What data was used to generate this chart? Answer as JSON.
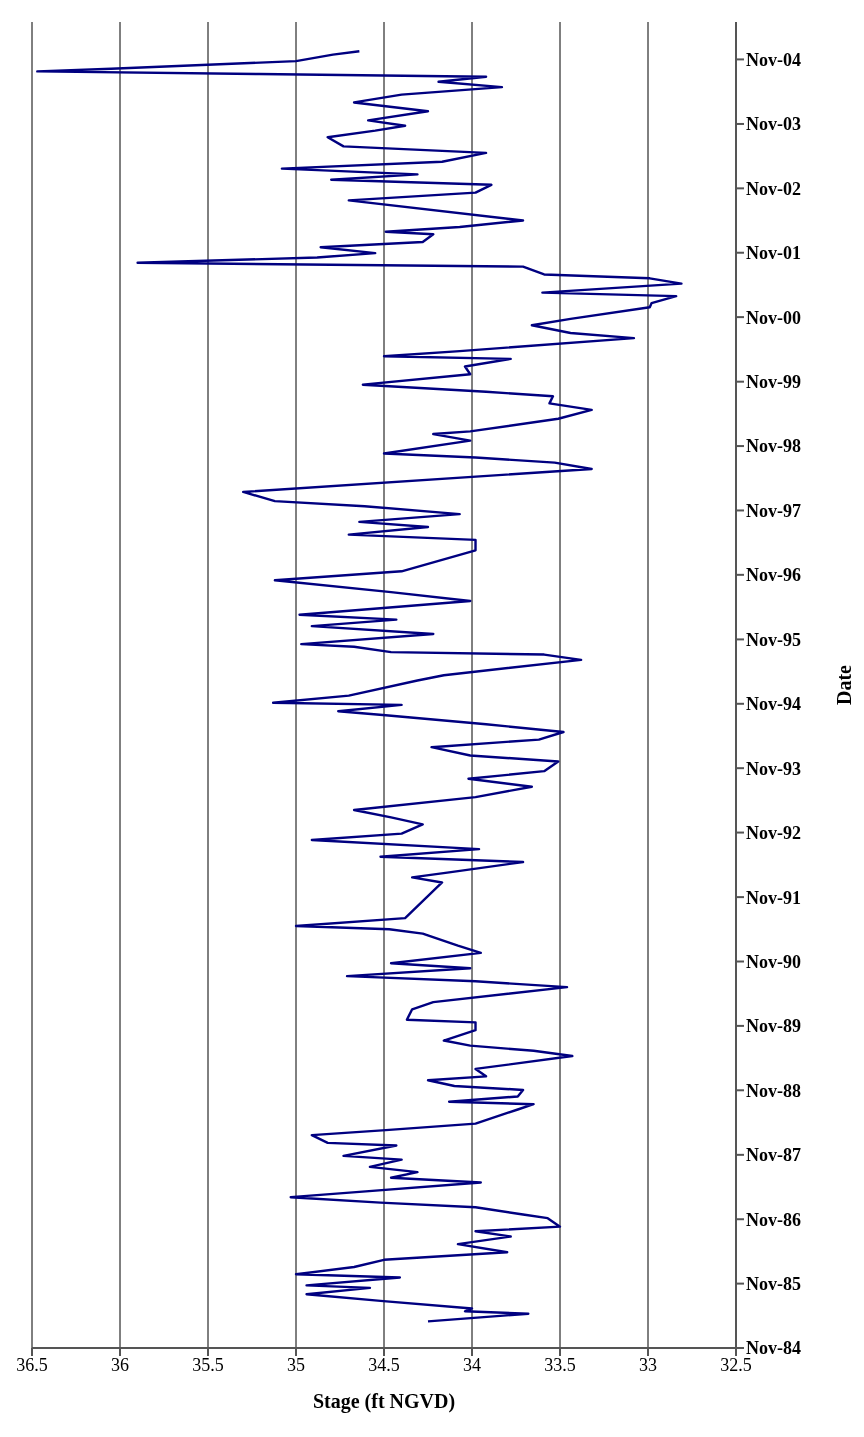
{
  "chart_data": {
    "type": "line",
    "orientation": "horizontal",
    "xlabel": "Stage (ft NGVD)",
    "ylabel": "Date",
    "ylim": [
      "1984-11",
      "2005-06"
    ],
    "yticks": [
      {
        "value": "1984-11",
        "label": "Nov-84"
      },
      {
        "value": "1985-11",
        "label": "Nov-85"
      },
      {
        "value": "1986-11",
        "label": "Nov-86"
      },
      {
        "value": "1987-11",
        "label": "Nov-87"
      },
      {
        "value": "1988-11",
        "label": "Nov-88"
      },
      {
        "value": "1989-11",
        "label": "Nov-89"
      },
      {
        "value": "1990-11",
        "label": "Nov-90"
      },
      {
        "value": "1991-11",
        "label": "Nov-91"
      },
      {
        "value": "1992-11",
        "label": "Nov-92"
      },
      {
        "value": "1993-11",
        "label": "Nov-93"
      },
      {
        "value": "1994-11",
        "label": "Nov-94"
      },
      {
        "value": "1995-11",
        "label": "Nov-95"
      },
      {
        "value": "1996-11",
        "label": "Nov-96"
      },
      {
        "value": "1997-11",
        "label": "Nov-97"
      },
      {
        "value": "1998-11",
        "label": "Nov-98"
      },
      {
        "value": "1999-11",
        "label": "Nov-99"
      },
      {
        "value": "2000-11",
        "label": "Nov-00"
      },
      {
        "value": "2001-11",
        "label": "Nov-01"
      },
      {
        "value": "2002-11",
        "label": "Nov-02"
      },
      {
        "value": "2003-11",
        "label": "Nov-03"
      },
      {
        "value": "2004-11",
        "label": "Nov-04"
      }
    ],
    "xlim": [
      36.5,
      32.5
    ],
    "xticks": [
      36.5,
      36,
      35.5,
      35,
      34.5,
      34,
      33.5,
      33,
      32.5
    ],
    "grid": "x",
    "legend": false,
    "marker": "none",
    "line_style": "solid",
    "series": [
      {
        "color": "#000080",
        "x": [
          "1985-04-01",
          "1985-05-14",
          "1985-05-28",
          "1985-06-13",
          "1985-07-26",
          "1985-09-02",
          "1985-10-08",
          "1985-10-22",
          "1985-12-06",
          "1985-12-24",
          "1986-02-03",
          "1986-03-16",
          "1986-04-28",
          "1986-06-13",
          "1986-07-26",
          "1986-08-25",
          "1986-09-20",
          "1986-11-07",
          "1986-11-28",
          "1987-01-08",
          "1987-02-03",
          "1987-03-06",
          "1987-04-05",
          "1987-05-28",
          "1987-06-24",
          "1987-07-26",
          "1987-08-25",
          "1987-10-05",
          "1987-10-26",
          "1987-12-24",
          "1988-01-08",
          "1988-02-21",
          "1988-03-20",
          "1988-04-26",
          "1988-07-15",
          "1988-08-14",
          "1988-08-28",
          "1988-09-27",
          "1988-11-03",
          "1988-11-25",
          "1988-12-28",
          "1989-01-19",
          "1989-03-02",
          "1989-05-14",
          "1989-06-13",
          "1989-07-12",
          "1989-08-10",
          "1989-10-08",
          "1989-11-21",
          "1989-12-06",
          "1990-02-03",
          "1990-03-16",
          "1990-06-09",
          "1990-07-12",
          "1990-08-10",
          "1990-09-24",
          "1990-10-22",
          "1990-12-20",
          "1991-01-30",
          "1991-04-08",
          "1991-05-03",
          "1991-05-21",
          "1991-07-05",
          "1991-10-01",
          "1992-01-23",
          "1992-02-21",
          "1992-03-20",
          "1992-05-18",
          "1992-06-17",
          "1992-07-30",
          "1992-09-20",
          "1992-10-26",
          "1992-12-17",
          "1993-01-26",
          "1993-03-09",
          "1993-05-21",
          "1993-07-19",
          "1993-09-02",
          "1993-10-15",
          "1993-12-09",
          "1994-01-12",
          "1994-02-28",
          "1994-04-12",
          "1994-05-25",
          "1994-07-08",
          "1994-08-28",
          "1994-09-20",
          "1994-10-26",
          "1994-11-07",
          "1994-12-17",
          "1995-03-13",
          "1995-04-12",
          "1995-07-08",
          "1995-08-07",
          "1995-08-21",
          "1995-09-20",
          "1995-10-05",
          "1995-12-02",
          "1996-01-15",
          "1996-02-21",
          "1996-03-20",
          "1996-06-06",
          "1996-07-26",
          "1996-10-01",
          "1996-11-21",
          "1997-01-19",
          "1997-03-20",
          "1997-05-18",
          "1997-06-17",
          "1997-07-30",
          "1997-08-28",
          "1997-10-11",
          "1997-11-25",
          "1997-12-24",
          "1998-02-14",
          "1998-06-24",
          "1998-07-30",
          "1998-08-28",
          "1998-09-20",
          "1998-12-02",
          "1999-01-08",
          "1999-01-23",
          "1999-04-05",
          "1999-05-25",
          "1999-07-01",
          "1999-08-10",
          "1999-09-05",
          "1999-10-15",
          "1999-12-13",
          "2000-01-26",
          "2000-03-09",
          "2000-03-24",
          "2000-04-22",
          "2000-07-05",
          "2000-08-03",
          "2000-09-16",
          "2000-10-22",
          "2000-12-27",
          "2001-01-19",
          "2001-02-28",
          "2001-03-20",
          "2001-05-10",
          "2001-06-09",
          "2001-07-01",
          "2001-08-14",
          "2001-09-05",
          "2001-10-05",
          "2001-10-30",
          "2001-12-02",
          "2002-01-01",
          "2002-02-14",
          "2002-02-28",
          "2002-03-27",
          "2002-05-03",
          "2002-07-01",
          "2002-08-25",
          "2002-10-08",
          "2002-11-21",
          "2002-12-20",
          "2003-01-19",
          "2003-02-21",
          "2003-04-01",
          "2003-05-21",
          "2003-06-27",
          "2003-08-18",
          "2003-09-24",
          "2003-10-22",
          "2003-11-21",
          "2004-01-12",
          "2004-03-02",
          "2004-04-15",
          "2004-05-28",
          "2004-06-27",
          "2004-07-26",
          "2004-08-10",
          "2004-08-25",
          "2004-09-09",
          "2004-10-22",
          "2004-11-28",
          "2004-12-17"
        ],
        "values": [
          34.25,
          33.68,
          34.04,
          34.0,
          34.52,
          34.94,
          34.58,
          34.94,
          34.41,
          35.0,
          34.67,
          34.5,
          33.8,
          34.08,
          33.78,
          33.98,
          33.5,
          33.57,
          33.71,
          33.98,
          34.52,
          35.03,
          34.64,
          33.95,
          34.46,
          34.31,
          34.58,
          34.4,
          34.73,
          34.43,
          34.82,
          34.91,
          34.49,
          33.98,
          33.74,
          33.65,
          34.13,
          33.74,
          33.71,
          34.1,
          34.25,
          33.92,
          33.98,
          33.43,
          33.65,
          34.01,
          34.16,
          33.98,
          33.98,
          34.37,
          34.34,
          34.22,
          33.46,
          33.98,
          34.71,
          34.01,
          34.46,
          33.95,
          34.08,
          34.28,
          34.47,
          35.0,
          34.38,
          null,
          34.17,
          34.34,
          34.13,
          33.71,
          34.52,
          33.96,
          34.91,
          34.4,
          34.28,
          34.46,
          34.67,
          33.98,
          33.66,
          34.02,
          33.59,
          33.51,
          34.01,
          34.23,
          33.62,
          33.48,
          33.92,
          34.49,
          34.76,
          34.4,
          35.13,
          34.7,
          34.31,
          34.16,
          33.38,
          33.59,
          34.46,
          34.67,
          34.97,
          34.22,
          34.91,
          34.43,
          34.98,
          34.01,
          34.46,
          35.12,
          34.4,
          34.19,
          33.98,
          33.98,
          34.7,
          34.25,
          34.64,
          34.07,
          34.61,
          35.12,
          35.3,
          33.32,
          33.53,
          33.98,
          34.5,
          34.01,
          34.22,
          34.01,
          33.51,
          33.32,
          33.56,
          33.54,
          33.92,
          34.62,
          34.01,
          34.04,
          33.78,
          34.5,
          34.07,
          33.08,
          33.44,
          33.66,
          33.44,
          32.99,
          32.98,
          32.84,
          33.6,
          32.81,
          32.99,
          33.59,
          33.71,
          35.9,
          34.88,
          34.55,
          34.86,
          34.28,
          34.22,
          34.49,
          34.07,
          33.71,
          null,
          34.7,
          33.98,
          33.89,
          34.8,
          34.31,
          35.08,
          34.17,
          33.92,
          34.73,
          34.82,
          34.55,
          34.38,
          34.59,
          34.25,
          34.67,
          34.4,
          33.83,
          34.19,
          33.92,
          35.21,
          36.47,
          36.05,
          35.0,
          34.79,
          34.64
        ]
      }
    ]
  }
}
